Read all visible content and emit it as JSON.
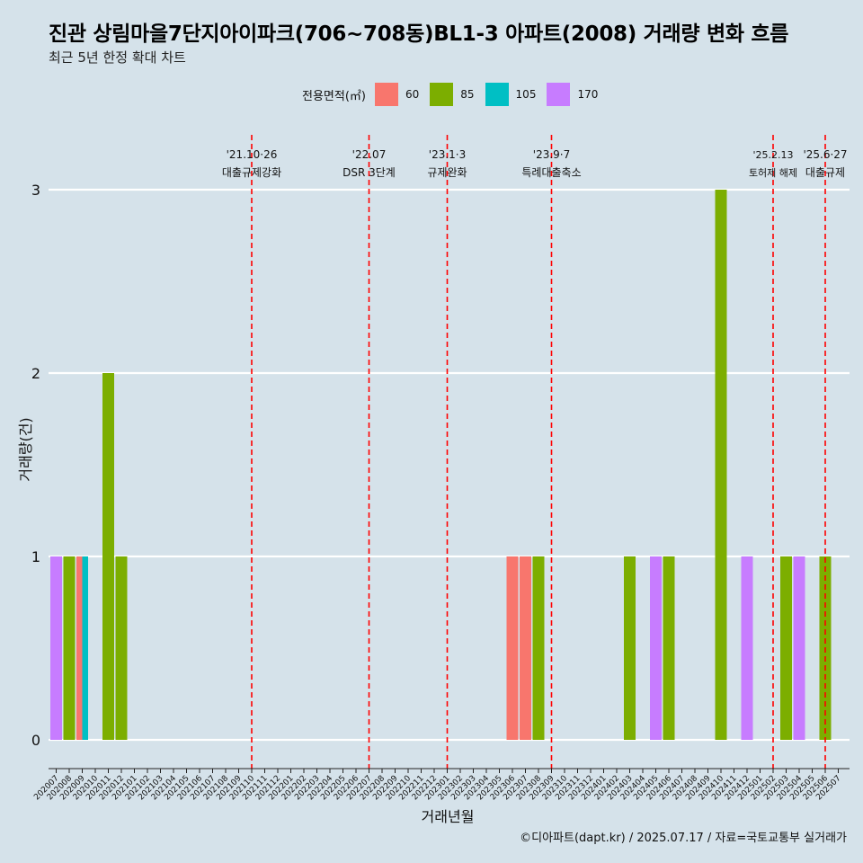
{
  "title": "진관 상림마을7단지아이파크(706~708동)BL1-3 아파트(2008) 거래량 변화 흐름",
  "subtitle": "최근 5년 한정 확대 차트",
  "caption": "©디아파트(dapt.kr) / 2025.07.17 / 자료=국토교통부 실거래가",
  "legend": {
    "title": "전용면적(㎡)",
    "items": [
      {
        "label": "60",
        "color": "#f8766d"
      },
      {
        "label": "85",
        "color": "#7cae00"
      },
      {
        "label": "105",
        "color": "#00bfc4"
      },
      {
        "label": "170",
        "color": "#c77cff"
      }
    ]
  },
  "chart_data": {
    "type": "bar",
    "xlabel": "거래년월",
    "ylabel": "거래량(건)",
    "ylim": [
      0,
      3
    ],
    "yticks": [
      0,
      1,
      2,
      3
    ],
    "grid": true,
    "legend_position": "top",
    "categories": [
      "202007",
      "202008",
      "202009",
      "202010",
      "202011",
      "202012",
      "202101",
      "202102",
      "202103",
      "202104",
      "202105",
      "202106",
      "202107",
      "202108",
      "202109",
      "202110",
      "202111",
      "202112",
      "202201",
      "202202",
      "202203",
      "202204",
      "202205",
      "202206",
      "202207",
      "202208",
      "202209",
      "202210",
      "202211",
      "202212",
      "202301",
      "202302",
      "202303",
      "202304",
      "202305",
      "202306",
      "202307",
      "202308",
      "202309",
      "202310",
      "202311",
      "202312",
      "202401",
      "202402",
      "202403",
      "202404",
      "202405",
      "202406",
      "202407",
      "202408",
      "202409",
      "202410",
      "202411",
      "202412",
      "202501",
      "202502",
      "202503",
      "202504",
      "202505",
      "202506",
      "202507"
    ],
    "bars": [
      {
        "month": "202007",
        "area": "170",
        "value": 1
      },
      {
        "month": "202008",
        "area": "85",
        "value": 1
      },
      {
        "month": "202009",
        "area": "60",
        "value": 1
      },
      {
        "month": "202009",
        "area": "105",
        "value": 1
      },
      {
        "month": "202011",
        "area": "85",
        "value": 2
      },
      {
        "month": "202012",
        "area": "85",
        "value": 1
      },
      {
        "month": "202306",
        "area": "60",
        "value": 1
      },
      {
        "month": "202307",
        "area": "60",
        "value": 1
      },
      {
        "month": "202308",
        "area": "85",
        "value": 1
      },
      {
        "month": "202403",
        "area": "85",
        "value": 1
      },
      {
        "month": "202405",
        "area": "170",
        "value": 1
      },
      {
        "month": "202406",
        "area": "85",
        "value": 1
      },
      {
        "month": "202410",
        "area": "85",
        "value": 3
      },
      {
        "month": "202412",
        "area": "170",
        "value": 1
      },
      {
        "month": "202503",
        "area": "85",
        "value": 1
      },
      {
        "month": "202504",
        "area": "170",
        "value": 1
      },
      {
        "month": "202506",
        "area": "85",
        "value": 1
      }
    ],
    "events": [
      {
        "month": "202110",
        "date": "'21.10·26",
        "label": "대출규제강화"
      },
      {
        "month": "202207",
        "date": "'22.07",
        "label": "DSR 3단계"
      },
      {
        "month": "202301",
        "date": "'23.1·3",
        "label": "규제완화"
      },
      {
        "month": "202309",
        "date": "'23.9·7",
        "label": "특례대출축소"
      },
      {
        "month": "202502",
        "date": "'25.2.13",
        "label": "토허제 해제"
      },
      {
        "month": "202506",
        "date": "'25.6·27",
        "label": "대출규제"
      }
    ]
  }
}
